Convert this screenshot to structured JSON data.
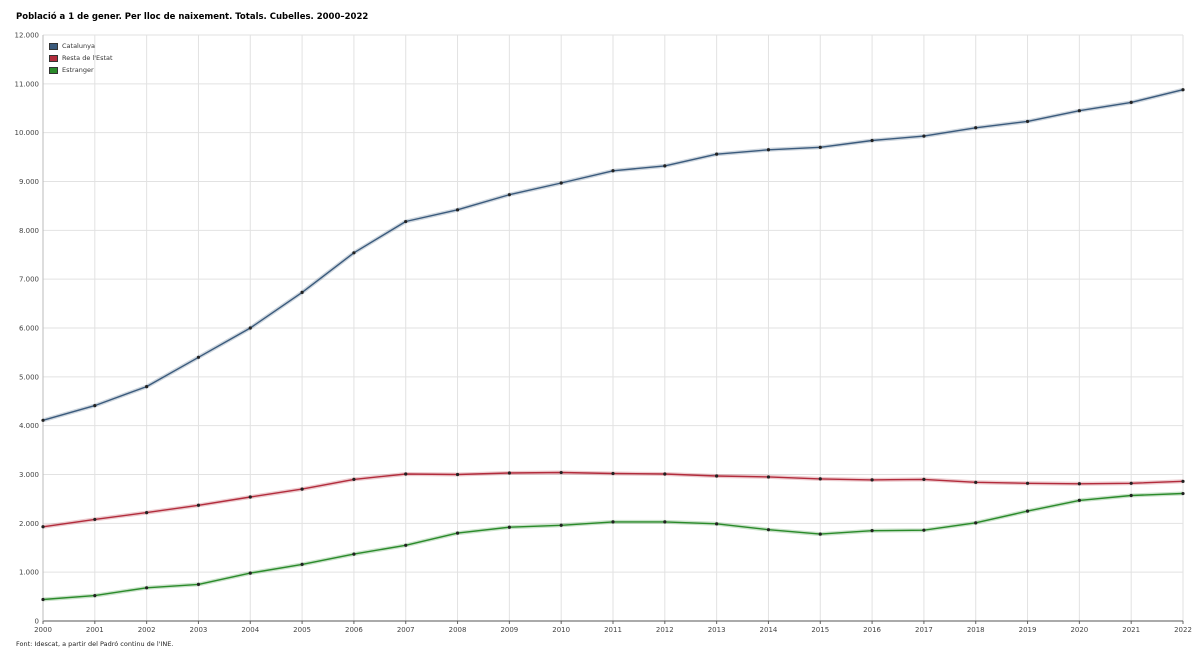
{
  "title": "Població a 1 de gener. Per lloc de naixement. Totals. Cubelles. 2000–2022",
  "source": "Font: Idescat, a partir del Padró continu de l'INE.",
  "chart_data": {
    "type": "line",
    "title": "Població a 1 de gener. Per lloc de naixement. Totals. Cubelles. 2000–2022",
    "x": [
      "2000",
      "2001",
      "2002",
      "2003",
      "2004",
      "2005",
      "2006",
      "2007",
      "2008",
      "2009",
      "2010",
      "2011",
      "2012",
      "2013",
      "2014",
      "2015",
      "2016",
      "2017",
      "2018",
      "2019",
      "2020",
      "2021",
      "2022"
    ],
    "y_ticks": [
      "0",
      "1.000",
      "2.000",
      "3.000",
      "4.000",
      "5.000",
      "6.000",
      "7.000",
      "8.000",
      "9.000",
      "10.000",
      "11.000",
      "12.000"
    ],
    "ylim": [
      0,
      12000
    ],
    "grid": true,
    "legend_position": "top-left",
    "series": [
      {
        "name": "Catalunya",
        "color": "#3a5a7c",
        "values": [
          4110,
          4410,
          4800,
          5400,
          6000,
          6730,
          7540,
          8180,
          8420,
          8730,
          8970,
          9220,
          9320,
          9560,
          9650,
          9700,
          9840,
          9930,
          10100,
          10230,
          10450,
          10620,
          10880
        ]
      },
      {
        "name": "Resta de l'Estat",
        "color": "#b22c3c",
        "values": [
          1930,
          2080,
          2220,
          2370,
          2540,
          2700,
          2900,
          3010,
          3000,
          3030,
          3040,
          3020,
          3010,
          2970,
          2950,
          2910,
          2890,
          2900,
          2840,
          2820,
          2810,
          2820,
          2860
        ]
      },
      {
        "name": "Estranger",
        "color": "#2a8a2a",
        "values": [
          440,
          520,
          680,
          750,
          980,
          1160,
          1370,
          1550,
          1800,
          1920,
          1960,
          2030,
          2030,
          1990,
          1870,
          1780,
          1850,
          1860,
          2010,
          2250,
          2470,
          2570,
          2610
        ]
      }
    ]
  }
}
